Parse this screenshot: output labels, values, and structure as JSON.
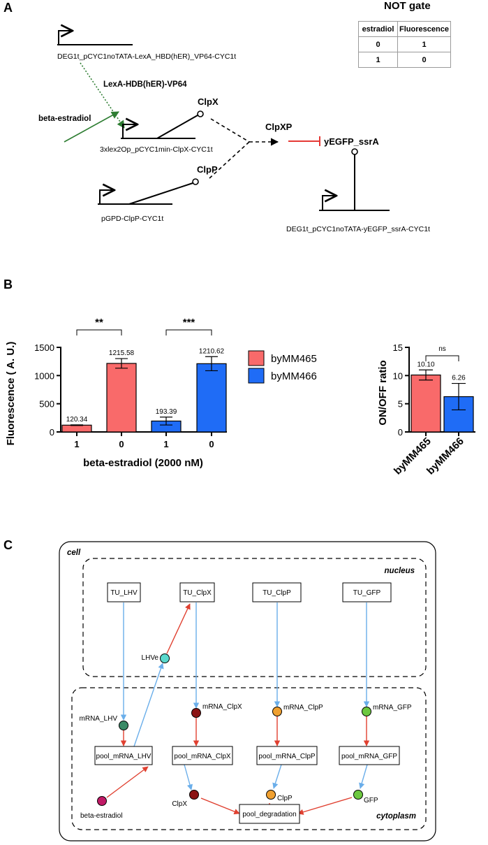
{
  "panels": {
    "a": "A",
    "b": "B",
    "c": "C"
  },
  "panel_a": {
    "not_gate_title": "NOT gate",
    "truth_table": {
      "headers": [
        "estradiol",
        "Fluorescence"
      ],
      "rows": [
        [
          "0",
          "1"
        ],
        [
          "1",
          "0"
        ]
      ]
    },
    "constructs": {
      "lexa": "DEG1t_pCYC1noTATA-LexA_HBD(hER)_VP64-CYC1t",
      "clpx": "3xlex2Op_pCYC1min-ClpX-CYC1t",
      "clpp": "pGPD-ClpP-CYC1t",
      "gfp": "DEG1t_pCYC1noTATA-yEGFP_ssrA-CYC1t"
    },
    "proteins": {
      "lexa_protein": "LexA-HDB(hER)-VP64",
      "beta_estradiol": "beta-estradiol",
      "clpx": "ClpX",
      "clpp": "ClpP",
      "clpxp": "ClpXP",
      "gfp": "yEGFP_ssrA"
    },
    "colors": {
      "activation": "#2e7d32",
      "repression": "#e53935"
    }
  },
  "chart_data": [
    {
      "type": "bar",
      "categories": [
        "1",
        "0",
        "1",
        "0"
      ],
      "strains": [
        "byMM465",
        "byMM465",
        "byMM466",
        "byMM466"
      ],
      "values": [
        120.34,
        1215.58,
        193.39,
        1210.62
      ],
      "value_labels": [
        "120.34",
        "1215.58",
        "193.39",
        "1210.62"
      ],
      "errors": [
        6,
        85,
        70,
        125
      ],
      "ylabel": "Fluorescence ( A. U.)",
      "xlabel": "beta-estradiol (2000 nM)",
      "ylim": [
        0,
        1500
      ],
      "yticks": [
        0,
        500,
        1000,
        1500
      ],
      "significance": [
        "**",
        "***"
      ],
      "legend": [
        {
          "name": "byMM465",
          "color": "#f96a6a"
        },
        {
          "name": "byMM466",
          "color": "#1f6cf6"
        }
      ]
    },
    {
      "type": "bar",
      "categories": [
        "byMM465",
        "byMM466"
      ],
      "values": [
        10.1,
        6.26
      ],
      "value_labels": [
        "10.10",
        "6.26"
      ],
      "errors": [
        0.9,
        2.35
      ],
      "ylabel": "ON/OFF ratio",
      "xlabel": "",
      "ylim": [
        0,
        15
      ],
      "yticks": [
        0,
        5,
        10,
        15
      ],
      "significance": "ns",
      "colors": [
        "#f96a6a",
        "#1f6cf6"
      ]
    }
  ],
  "panel_c": {
    "compartments": {
      "cell": "cell",
      "nucleus": "nucleus",
      "cytoplasm": "cytoplasm"
    },
    "boxes": {
      "tu_lhv": "TU_LHV",
      "tu_clpx": "TU_ClpX",
      "tu_clpp": "TU_ClpP",
      "tu_gfp": "TU_GFP",
      "pool_lhv": "pool_mRNA_LHV",
      "pool_clpx": "pool_mRNA_ClpX",
      "pool_clpp": "pool_mRNA_ClpP",
      "pool_gfp": "pool_mRNA_GFP",
      "pool_deg": "pool_degradation"
    },
    "nodes": {
      "lhve": "LHVe",
      "mrna_lhv": "mRNA_LHV",
      "mrna_clpx": "mRNA_ClpX",
      "mrna_clpp": "mRNA_ClpP",
      "mrna_gfp": "mRNA_GFP",
      "beta": "beta-estradiol",
      "clpx": "ClpX",
      "clpp": "ClpP",
      "gfp": "GFP"
    },
    "node_colors": {
      "lhve": "#5ad8cc",
      "mrna_lhv": "#3a8a66",
      "clpx": "#8b1414",
      "clpp": "#f0a030",
      "gfp": "#6dc840",
      "beta": "#c01a66"
    },
    "edge_colors": {
      "transcription": "#6aaeea",
      "reaction": "#e04030"
    }
  }
}
